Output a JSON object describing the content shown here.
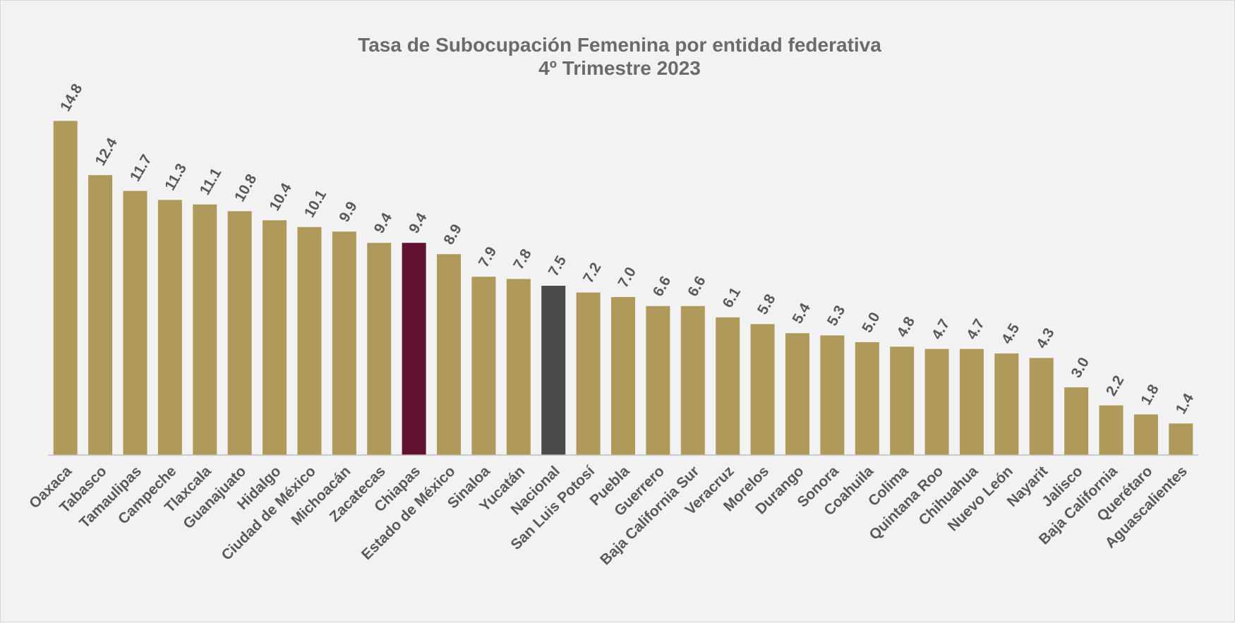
{
  "chart_data": {
    "type": "bar",
    "title": "Tasa de Subocupación Femenina por entidad federativa",
    "subtitle": "4º Trimestre 2023",
    "xlabel": "",
    "ylabel": "",
    "ylim": [
      0,
      15
    ],
    "grid": false,
    "legend": "none",
    "bar_color": "#b09a5b",
    "highlight_colors": {
      "Chiapas": "#611232",
      "Nacional": "#4a4a4a"
    },
    "categories": [
      "Oaxaca",
      "Tabasco",
      "Tamaulipas",
      "Campeche",
      "Tlaxcala",
      "Guanajuato",
      "Hidalgo",
      "Ciudad de México",
      "Michoacán",
      "Zacatecas",
      "Chiapas",
      "Estado de México",
      "Sinaloa",
      "Yucatán",
      "Nacional",
      "San Luis Potosí",
      "Puebla",
      "Guerrero",
      "Baja California Sur",
      "Veracruz",
      "Morelos",
      "Durango",
      "Sonora",
      "Coahuila",
      "Colima",
      "Quintana Roo",
      "Chihuahua",
      "Nuevo León",
      "Nayarit",
      "Jalisco",
      "Baja California",
      "Querétaro",
      "Aguascalientes"
    ],
    "value_labels": [
      "14.8",
      "12.4",
      "11.7",
      "11.3",
      "11.1",
      "10.8",
      "10.4",
      "10.1",
      "9.9",
      "9.4",
      "9.4",
      "8.9",
      "7.9",
      "7.8",
      "7.5",
      "7.2",
      "7.0",
      "6.6",
      "6.6",
      "6.1",
      "5.8",
      "5.4",
      "5.3",
      "5.0",
      "4.8",
      "4.7",
      "4.7",
      "4.5",
      "4.3",
      "3.0",
      "2.2",
      "1.8",
      "1.4"
    ],
    "values": [
      14.8,
      12.4,
      11.7,
      11.3,
      11.1,
      10.8,
      10.4,
      10.1,
      9.9,
      9.4,
      9.4,
      8.9,
      7.9,
      7.8,
      7.5,
      7.2,
      7.0,
      6.6,
      6.6,
      6.1,
      5.8,
      5.4,
      5.3,
      5.0,
      4.8,
      4.7,
      4.7,
      4.5,
      4.3,
      3.0,
      2.2,
      1.8,
      1.4
    ]
  }
}
